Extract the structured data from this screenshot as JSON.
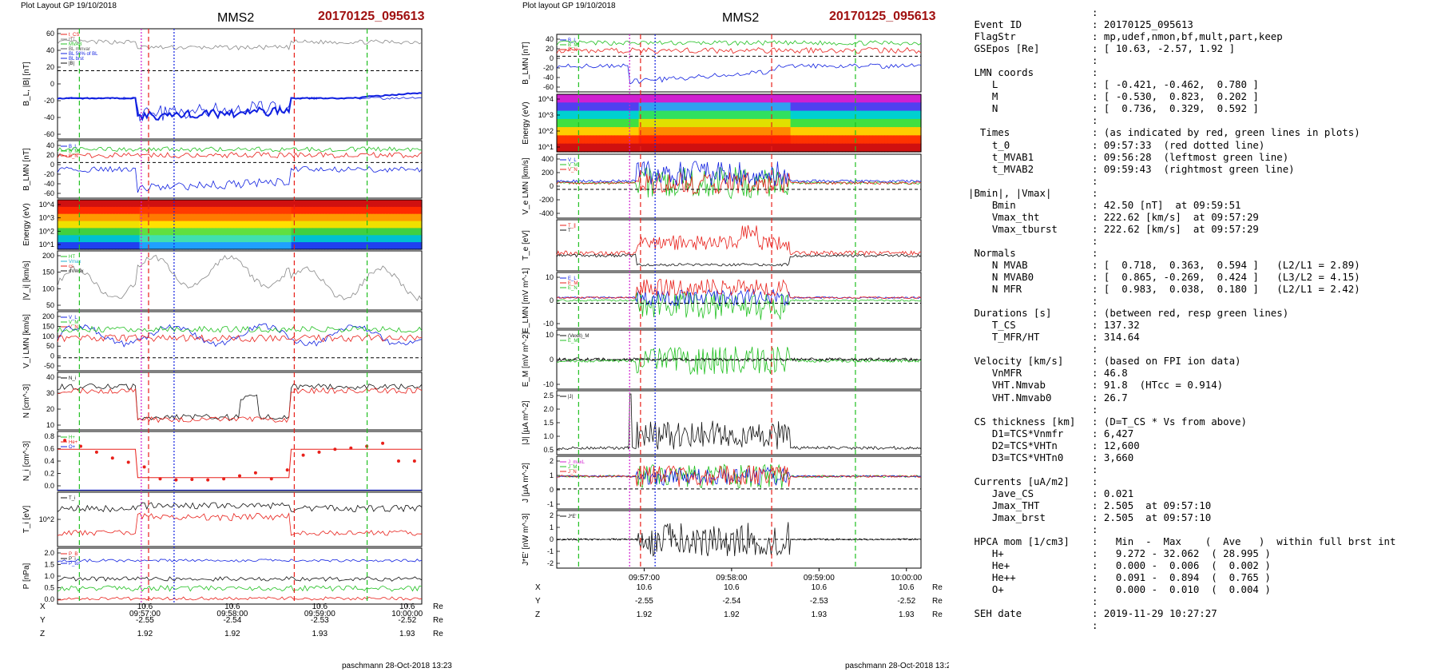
{
  "left": {
    "header": "Plot Layout GP 19/10/2018",
    "spacecraft": "MMS2",
    "event": "20170125_095613",
    "footer": "paschmann 28-Oct-2018 13:23",
    "time_ticks": [
      "09:57:00",
      "09:58:00",
      "09:59:00",
      "10:00:00"
    ],
    "ephemeris": {
      "labels": [
        "X",
        "Y",
        "Z"
      ],
      "values": [
        [
          "10.6",
          "10.6",
          "10.6",
          "10.6"
        ],
        [
          "-2.55",
          "-2.54",
          "-2.53",
          "-2.52"
        ],
        [
          "1.92",
          "1.92",
          "1.93",
          "1.93"
        ]
      ],
      "unit": "Re"
    },
    "panels": [
      {
        "ylabel": "B_L, |B| [nT]",
        "ticks": [
          "60",
          "40",
          "20",
          "0",
          "-20",
          "-40",
          "-60"
        ],
        "legend": [
          "t_CS",
          "HT",
          "MVAB",
          "BL minvar",
          "BL 50% of BL",
          "BL brst",
          "|B|"
        ]
      },
      {
        "ylabel": "B_LMN [nT]",
        "ticks": [
          "40",
          "20",
          "0",
          "-20",
          "-40",
          "-60"
        ],
        "legend": [
          "B_L",
          "B_M",
          "B_N"
        ]
      },
      {
        "ylabel": "Energy (eV)",
        "ticks": [
          "10^4",
          "10^3",
          "10^2",
          "10^1"
        ],
        "legend": []
      },
      {
        "ylabel": "|V_i| [km/s]",
        "ticks": [
          "200",
          "150",
          "100",
          "50"
        ],
        "legend": [
          "HT",
          "Vmax",
          "cs",
          "dVmax"
        ]
      },
      {
        "ylabel": "V_i LMN [km/s]",
        "ticks": [
          "200",
          "150",
          "100",
          "50",
          "0",
          "-50"
        ],
        "legend": [
          "V_L",
          "V_M",
          "V_N"
        ]
      },
      {
        "ylabel": "N [cm^-3]",
        "ticks": [
          "40",
          "30",
          "20",
          "10"
        ],
        "legend": [
          "N_i"
        ]
      },
      {
        "ylabel": "N_i [cm^-3]",
        "ticks": [
          "0.8",
          "0.6",
          "0.4",
          "0.2",
          "0.0"
        ],
        "legend": [
          "H+",
          "He+",
          "O+"
        ]
      },
      {
        "ylabel": "T_i [eV]",
        "ticks": [
          "10^2"
        ],
        "legend": [
          "T_i"
        ]
      },
      {
        "ylabel": "P [nPa]",
        "ticks": [
          "2.0",
          "1.5",
          "1.0",
          "0.5",
          "0.0"
        ],
        "legend": [
          "P_B",
          "P_i",
          "P_tot"
        ]
      }
    ]
  },
  "middle": {
    "header": "Plot layout GP 19/10/2018",
    "spacecraft": "MMS2",
    "event": "20170125_095613",
    "footer": "paschmann 28-Oct-2018 13:23",
    "time_ticks": [
      "09:57:00",
      "09:58:00",
      "09:59:00",
      "10:00:00"
    ],
    "ephemeris": {
      "labels": [
        "X",
        "Y",
        "Z"
      ],
      "values": [
        [
          "10.6",
          "10.6",
          "10.6",
          "10.6"
        ],
        [
          "-2.55",
          "-2.54",
          "-2.53",
          "-2.52"
        ],
        [
          "1.92",
          "1.92",
          "1.93",
          "1.93"
        ]
      ],
      "unit": "Re"
    },
    "panels": [
      {
        "ylabel": "B_LMN [nT]",
        "ticks": [
          "40",
          "20",
          "0",
          "-20",
          "-40",
          "-60"
        ],
        "legend": [
          "B_L",
          "B_M",
          "B_N"
        ]
      },
      {
        "ylabel": "Energy (eV)",
        "ticks": [
          "10^4",
          "10^3",
          "10^2",
          "10^1"
        ],
        "legend": []
      },
      {
        "ylabel": "V_e LMN [km/s]",
        "ticks": [
          "400",
          "200",
          "0",
          "-200",
          "-400"
        ],
        "legend": [
          "V_L",
          "V_M",
          "V_N"
        ]
      },
      {
        "ylabel": "T_e [eV]",
        "ticks": [],
        "legend": [
          "T_∥",
          "T"
        ]
      },
      {
        "ylabel": "E_LMN [mV m^-1]",
        "ticks": [
          "10",
          "0",
          "-10"
        ],
        "legend": [
          "E_L",
          "E_M",
          "E_N"
        ]
      },
      {
        "ylabel": "E_M [mV m^-2]",
        "ticks": [
          "10",
          "0",
          "-10"
        ],
        "legend": [
          "(VexB)_M",
          "E_M"
        ]
      },
      {
        "ylabel": "|J| [µA m^-2]",
        "ticks": [
          "2.5",
          "2.0",
          "1.5",
          "1.0",
          "0.5"
        ],
        "legend": [
          "|J|"
        ]
      },
      {
        "ylabel": "J [µA m^-2]",
        "ticks": [
          "2",
          "1",
          "0",
          "-1"
        ],
        "legend": [
          "J_maxL",
          "J_M",
          "J_N"
        ]
      },
      {
        "ylabel": "J*E' [nW m^-3]",
        "ticks": [
          "2",
          "1",
          "0",
          "-1",
          "-2"
        ],
        "legend": [
          "J*E'"
        ]
      }
    ]
  },
  "info": {
    "rows": [
      {
        "k": "",
        "v": ":"
      },
      {
        "k": " Event ID",
        "v": ": 20170125_095613"
      },
      {
        "k": " FlagStr",
        "v": ": mp,udef,nmon,bf,mult,part,keep"
      },
      {
        "k": " GSEpos [Re]",
        "v": ": [ 10.63, -2.57, 1.92 ]"
      },
      {
        "k": "",
        "v": ":"
      },
      {
        "k": " LMN coords",
        "v": ":"
      },
      {
        "k": "    L",
        "v": ": [ -0.421, -0.462,  0.780 ]"
      },
      {
        "k": "    M",
        "v": ": [ -0.530,  0.823,  0.202 ]"
      },
      {
        "k": "    N",
        "v": ": [  0.736,  0.329,  0.592 ]"
      },
      {
        "k": "",
        "v": ":"
      },
      {
        "k": "  Times",
        "v": ": (as indicated by red, green lines in plots)"
      },
      {
        "k": "    t_0",
        "v": ": 09:57:33  (red dotted line)"
      },
      {
        "k": "    t_MVAB1",
        "v": ": 09:56:28  (leftmost green line)"
      },
      {
        "k": "    t_MVAB2",
        "v": ": 09:59:43  (rightmost green line)"
      },
      {
        "k": "",
        "v": ":"
      },
      {
        "k": "|Bmin|, |Vmax|",
        "v": ":"
      },
      {
        "k": "    Bmin",
        "v": ": 42.50 [nT]  at 09:59:51"
      },
      {
        "k": "    Vmax_tht",
        "v": ": 222.62 [km/s]  at 09:57:29"
      },
      {
        "k": "    Vmax_tburst",
        "v": ": 222.62 [km/s]  at 09:57:29"
      },
      {
        "k": "",
        "v": ":"
      },
      {
        "k": " Normals",
        "v": ":"
      },
      {
        "k": "    N MVAB",
        "v": ": [  0.718,  0.363,  0.594 ]   (L2/L1 = 2.89)"
      },
      {
        "k": "    N MVAB0",
        "v": ": [  0.865, -0.269,  0.424 ]   (L3/L2 = 4.15)"
      },
      {
        "k": "    N MFR",
        "v": ": [  0.983,  0.038,  0.180 ]   (L2/L1 = 2.42)"
      },
      {
        "k": "",
        "v": ":"
      },
      {
        "k": " Durations [s]",
        "v": ": (between red, resp green lines)"
      },
      {
        "k": "    T_CS",
        "v": ": 137.32"
      },
      {
        "k": "    T_MFR/HT",
        "v": ": 314.64"
      },
      {
        "k": "",
        "v": ":"
      },
      {
        "k": " Velocity [km/s]",
        "v": ": (based on FPI ion data)"
      },
      {
        "k": "    VnMFR",
        "v": ": 46.8"
      },
      {
        "k": "    VHT.Nmvab",
        "v": ": 91.8  (HTcc = 0.914)"
      },
      {
        "k": "    VHT.Nmvab0",
        "v": ": 26.7"
      },
      {
        "k": "",
        "v": ":"
      },
      {
        "k": " CS thickness [km]",
        "v": ": (D=T_CS * Vs from above)"
      },
      {
        "k": "    D1=TCS*Vnmfr",
        "v": ": 6,427"
      },
      {
        "k": "    D2=TCS*VHTn",
        "v": ": 12,600"
      },
      {
        "k": "    D3=TCS*VHTn0",
        "v": ": 3,660"
      },
      {
        "k": "",
        "v": ":"
      },
      {
        "k": " Currents [uA/m2]",
        "v": ":"
      },
      {
        "k": "    Jave_CS",
        "v": ": 0.021"
      },
      {
        "k": "    Jmax_THT",
        "v": ": 2.505  at 09:57:10"
      },
      {
        "k": "    Jmax_brst",
        "v": ": 2.505  at 09:57:10"
      },
      {
        "k": "",
        "v": ":"
      },
      {
        "k": " HPCA mom [1/cm3]",
        "v": ":   Min  -  Max    (  Ave   )  within full brst int"
      },
      {
        "k": "    H+",
        "v": ":   9.272 - 32.062  ( 28.995 )"
      },
      {
        "k": "    He+",
        "v": ":   0.000 -  0.006  (  0.002 )"
      },
      {
        "k": "    He++",
        "v": ":   0.091 -  0.894  (  0.765 )"
      },
      {
        "k": "    O+",
        "v": ":   0.000 -  0.010  (  0.004 )"
      },
      {
        "k": "",
        "v": ":"
      },
      {
        "k": " SEH date",
        "v": ": 2019-11-29 10:27:27"
      },
      {
        "k": "",
        "v": ":"
      }
    ]
  },
  "colors": {
    "event": "#a01010",
    "red": "#e8201a",
    "green": "#20c020",
    "blue": "#1020e0",
    "black": "#111111",
    "gray": "#888888",
    "magenta": "#d020d0",
    "cyan": "#20b0d0"
  },
  "chart_data": [
    {
      "type": "line",
      "title": "MMS2 20170125_095613",
      "xlabel": "UT",
      "xlim": [
        "09:56:13",
        "10:00:43"
      ],
      "markers": {
        "t_0": "09:57:33",
        "t_MVAB1": "09:56:28",
        "t_MVAB2": "09:59:43"
      },
      "series": [
        {
          "name": "B_L",
          "panel": "B_L, |B|",
          "values": [
            -2,
            -2,
            -3,
            -4,
            -55,
            -48,
            -40,
            -35,
            -28,
            -32,
            -30,
            -30,
            -28,
            -25,
            -30,
            -25,
            -2,
            -2,
            -1,
            -2,
            -1,
            -1,
            2,
            3,
            5,
            8
          ]
        },
        {
          "name": "|B|",
          "panel": "B_L, |B|",
          "values": [
            48,
            47,
            46,
            47,
            42,
            50,
            48,
            45,
            47,
            50,
            52,
            55,
            57,
            55,
            52,
            50,
            48,
            47,
            48,
            50,
            52,
            55,
            52,
            48,
            50,
            52
          ]
        },
        {
          "name": "N_i",
          "panel": "N",
          "values": [
            38,
            40,
            39,
            37,
            15,
            16,
            14,
            13,
            14,
            12,
            14,
            15,
            28,
            16,
            14,
            13,
            30,
            35,
            37,
            38,
            39,
            40,
            38,
            37,
            36,
            38
          ]
        },
        {
          "name": "He++",
          "panel": "N_i",
          "values": [
            0.85,
            0.75,
            0.65,
            0.55,
            0.48,
            0.4,
            0.2,
            0.18,
            0.19,
            0.18,
            0.2,
            0.25,
            0.3,
            0.2,
            0.35,
            0.6,
            0.65,
            0.7,
            0.72,
            0.75,
            0.8,
            0.5,
            0.5
          ]
        },
        {
          "name": "|J|",
          "panel": "|J|",
          "values": [
            0.2,
            0.2,
            0.2,
            0.25,
            2.5,
            1.2,
            0.9,
            0.8,
            0.7,
            0.9,
            0.8,
            0.7,
            1.1,
            0.9,
            0.6,
            0.8,
            0.3,
            0.2,
            0.2,
            0.2,
            0.2,
            0.2,
            0.2,
            0.2,
            0.2,
            0.2
          ]
        }
      ]
    }
  ]
}
